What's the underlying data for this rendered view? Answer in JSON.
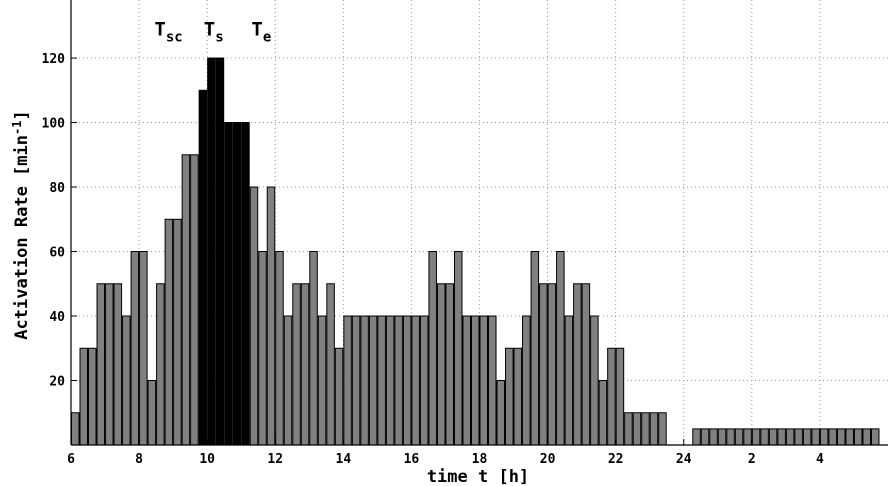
{
  "chart_data": {
    "type": "bar",
    "xlabel": "time t [h]",
    "ylabel": "Activation Rate [min",
    "ylabel_sup": "-1",
    "ylabel_end": "]",
    "x_ticks": [
      "6",
      "8",
      "10",
      "12",
      "14",
      "16",
      "18",
      "20",
      "22",
      "24",
      "2",
      "4"
    ],
    "x_tick_hours": [
      6,
      8,
      10,
      12,
      14,
      16,
      18,
      20,
      22,
      24,
      26,
      28
    ],
    "y_ticks": [
      20,
      40,
      60,
      80,
      100,
      120
    ],
    "xlim": [
      6,
      30
    ],
    "ylim": [
      0,
      138
    ],
    "grid": true,
    "bin_width_h": 0.25,
    "start_hour": 6,
    "values": [
      10,
      30,
      30,
      50,
      50,
      50,
      40,
      60,
      60,
      20,
      50,
      70,
      70,
      90,
      90,
      110,
      120,
      120,
      100,
      100,
      100,
      80,
      60,
      80,
      60,
      40,
      50,
      50,
      60,
      40,
      50,
      30,
      40,
      40,
      40,
      40,
      40,
      40,
      40,
      40,
      40,
      40,
      60,
      50,
      50,
      60,
      40,
      40,
      40,
      40,
      20,
      30,
      30,
      40,
      60,
      50,
      50,
      60,
      40,
      50,
      50,
      40,
      20,
      30,
      30,
      10,
      10,
      10,
      10,
      10,
      0,
      0,
      0,
      5,
      5,
      5,
      5,
      5,
      5,
      5,
      5,
      5,
      5,
      5,
      5,
      5,
      5,
      5,
      5,
      5,
      5,
      5,
      5,
      5,
      5
    ],
    "highlight_bins": [
      15,
      16,
      17,
      18,
      19,
      20
    ],
    "colors": {
      "bar": "#808080",
      "highlight": "#000000",
      "edge": "#000000",
      "grid": "#999999"
    },
    "annotations": [
      {
        "main": "T",
        "sub": "sc",
        "x": 8.45,
        "y": 127
      },
      {
        "main": "T",
        "sub": "s",
        "x": 9.9,
        "y": 127
      },
      {
        "main": "T",
        "sub": "e",
        "x": 11.3,
        "y": 127
      }
    ]
  }
}
